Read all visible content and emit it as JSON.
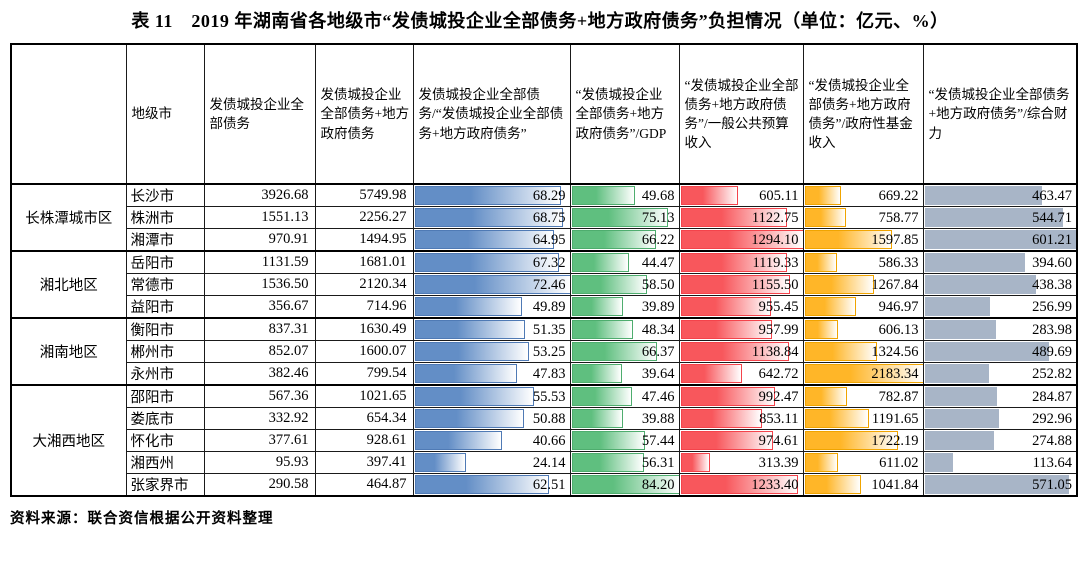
{
  "title": "表 11　2019 年湖南省各地级市“发债城投企业全部债务+地方政府债务”负担情况（单位：亿元、%）",
  "source": "资料来源：联合资信根据公开资料整理",
  "table": {
    "region_header": "",
    "columns": [
      "地级市",
      "发债城投企业全部债务",
      "发债城投企业全部债务+地方政府债务",
      "发债城投企业全部债务/“发债城投企业全部债务+地方政府债务”",
      "“发债城投企业全部债务+地方政府债务”/GDP",
      "“发债城投企业全部债务+地方政府债务”/一般公共预算收入",
      "“发债城投企业全部债务+地方政府债务”/政府性基金收入",
      "“发债城投企业全部债务+地方政府债务”/综合财力"
    ],
    "bar_columns": [
      {
        "value_index": 2,
        "name": "ratio-of-total-bar",
        "fill": "#638ec6",
        "border": "#4f7ab5",
        "gradient": true
      },
      {
        "value_index": 3,
        "name": "ratio-to-gdp-bar",
        "fill": "#5fbf7f",
        "border": "#4ead6e",
        "gradient": true
      },
      {
        "value_index": 4,
        "name": "ratio-to-budget-bar",
        "fill": "#f8575c",
        "border": "#f4434b",
        "gradient": true
      },
      {
        "value_index": 5,
        "name": "ratio-to-fund-income-bar",
        "fill": "#ffb628",
        "border": "#f0a400",
        "gradient": true
      },
      {
        "value_index": 6,
        "name": "ratio-to-fiscal-power-bar",
        "fill": "#a8b5c7",
        "border": "#a8b5c7",
        "gradient": false
      }
    ],
    "groups": [
      {
        "region": "长株潭城市区",
        "rows": [
          {
            "city": "长沙市",
            "values": [
              "3926.68",
              "5749.98",
              "68.29",
              "49.68",
              "605.11",
              "669.22",
              "463.47"
            ]
          },
          {
            "city": "株洲市",
            "values": [
              "1551.13",
              "2256.27",
              "68.75",
              "75.13",
              "1122.75",
              "758.77",
              "544.71"
            ]
          },
          {
            "city": "湘潭市",
            "values": [
              "970.91",
              "1494.95",
              "64.95",
              "66.22",
              "1294.10",
              "1597.85",
              "601.21"
            ]
          }
        ]
      },
      {
        "region": "湘北地区",
        "rows": [
          {
            "city": "岳阳市",
            "values": [
              "1131.59",
              "1681.01",
              "67.32",
              "44.47",
              "1119.33",
              "586.33",
              "394.60"
            ]
          },
          {
            "city": "常德市",
            "values": [
              "1536.50",
              "2120.34",
              "72.46",
              "58.50",
              "1155.50",
              "1267.84",
              "438.38"
            ]
          },
          {
            "city": "益阳市",
            "values": [
              "356.67",
              "714.96",
              "49.89",
              "39.89",
              "955.45",
              "946.97",
              "256.99"
            ]
          }
        ]
      },
      {
        "region": "湘南地区",
        "rows": [
          {
            "city": "衡阳市",
            "values": [
              "837.31",
              "1630.49",
              "51.35",
              "48.34",
              "957.99",
              "606.13",
              "283.98"
            ]
          },
          {
            "city": "郴州市",
            "values": [
              "852.07",
              "1600.07",
              "53.25",
              "66.37",
              "1138.84",
              "1324.56",
              "489.69"
            ]
          },
          {
            "city": "永州市",
            "values": [
              "382.46",
              "799.54",
              "47.83",
              "39.64",
              "642.72",
              "2183.34",
              "252.82"
            ]
          }
        ]
      },
      {
        "region": "大湘西地区",
        "rows": [
          {
            "city": "邵阳市",
            "values": [
              "567.36",
              "1021.65",
              "55.53",
              "47.46",
              "992.47",
              "782.87",
              "284.87"
            ]
          },
          {
            "city": "娄底市",
            "values": [
              "332.92",
              "654.34",
              "50.88",
              "39.88",
              "853.11",
              "1191.65",
              "292.96"
            ]
          },
          {
            "city": "怀化市",
            "values": [
              "377.61",
              "928.61",
              "40.66",
              "57.44",
              "974.61",
              "1722.19",
              "274.88"
            ]
          },
          {
            "city": "湘西州",
            "values": [
              "95.93",
              "397.41",
              "24.14",
              "56.31",
              "313.39",
              "611.02",
              "113.64"
            ]
          },
          {
            "city": "张家界市",
            "values": [
              "290.58",
              "464.87",
              "62.51",
              "84.20",
              "1233.40",
              "1041.84",
              "571.05"
            ]
          }
        ]
      }
    ]
  }
}
